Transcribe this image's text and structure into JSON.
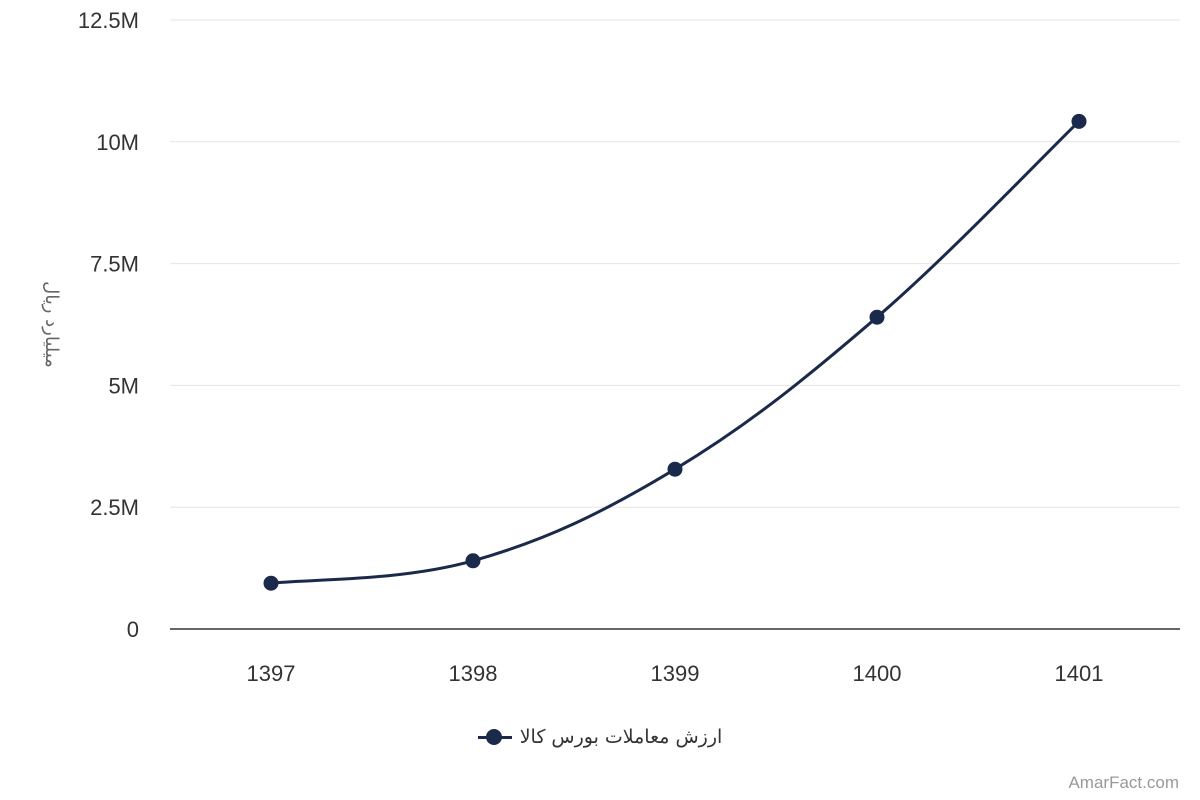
{
  "chart_data": {
    "type": "line",
    "title": "",
    "xlabel": "",
    "ylabel": "میلیارد ریال",
    "categories": [
      "1397",
      "1398",
      "1399",
      "1400",
      "1401"
    ],
    "series": [
      {
        "name": "ارزش معاملات بورس کالا",
        "values": [
          940000,
          1400000,
          3280000,
          6400000,
          10420000
        ],
        "color": "#1b2a4a"
      }
    ],
    "ylim": [
      0,
      12500000
    ],
    "yticks": [
      {
        "value": 0,
        "label": "0"
      },
      {
        "value": 2500000,
        "label": "2.5M"
      },
      {
        "value": 5000000,
        "label": "5M"
      },
      {
        "value": 7500000,
        "label": "7.5M"
      },
      {
        "value": 10000000,
        "label": "10M"
      },
      {
        "value": 12500000,
        "label": "12.5M"
      }
    ],
    "grid": true,
    "smooth": true,
    "legend_position": "bottom-center",
    "colors": {
      "grid": "#e6e6e6",
      "axis": "#333333",
      "text": "#333333"
    }
  },
  "credits": "AmarFact.com"
}
